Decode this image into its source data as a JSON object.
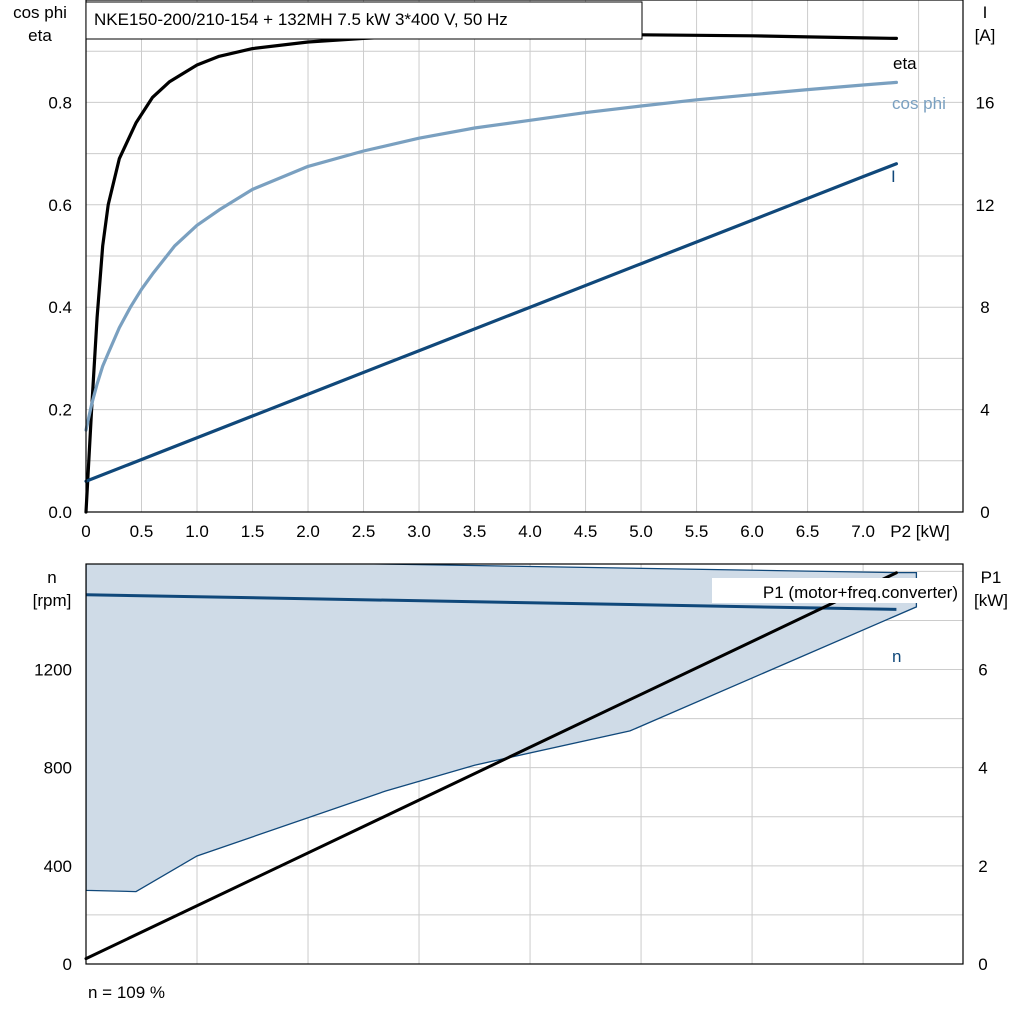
{
  "title": "NKE150-200/210-154 + 132MH   7.5 kW   3*400 V, 50 Hz",
  "footer_note": "n = 109 %",
  "colors": {
    "eta": "#000000",
    "cos_phi": "#7aa0c0",
    "current": "#10487a",
    "speed": "#10487a",
    "speed_band_fill": "#cfdbe7",
    "p1": "#000000",
    "grid": "#cccccc"
  },
  "chart_data": [
    {
      "type": "line",
      "x_axis": {
        "label": "P2 [kW]",
        "range": [
          0,
          7.9
        ],
        "ticks": [
          0,
          0.5,
          1.0,
          1.5,
          2.0,
          2.5,
          3.0,
          3.5,
          4.0,
          4.5,
          5.0,
          5.5,
          6.0,
          6.5,
          7.0
        ],
        "tick_labels": [
          "0",
          "0.5",
          "1.0",
          "1.5",
          "2.0",
          "2.5",
          "3.0",
          "3.5",
          "4.0",
          "4.5",
          "5.0",
          "5.5",
          "6.0",
          "6.5",
          "7.0"
        ]
      },
      "y_left": {
        "label_line1": "cos phi",
        "label_line2": "eta",
        "range": [
          0,
          1.0
        ],
        "ticks": [
          0,
          0.2,
          0.4,
          0.6,
          0.8
        ],
        "tick_labels": [
          "0.0",
          "0.2",
          "0.4",
          "0.6",
          "0.8"
        ]
      },
      "y_right": {
        "label_line1": "I",
        "label_line2": "[A]",
        "range": [
          0,
          20
        ],
        "ticks": [
          0,
          4,
          8,
          12,
          16
        ],
        "tick_labels": [
          "0",
          "4",
          "8",
          "12",
          "16"
        ]
      },
      "grid": true,
      "series": [
        {
          "name": "eta",
          "axis": "left",
          "color_key": "eta",
          "x": [
            0.0,
            0.05,
            0.1,
            0.15,
            0.2,
            0.3,
            0.45,
            0.6,
            0.75,
            0.9,
            1.0,
            1.2,
            1.5,
            2.0,
            2.5,
            3.0,
            3.5,
            4.0,
            4.5,
            5.0,
            5.5,
            6.0,
            6.5,
            7.0,
            7.3
          ],
          "y": [
            0.0,
            0.2,
            0.38,
            0.52,
            0.6,
            0.69,
            0.76,
            0.81,
            0.84,
            0.86,
            0.873,
            0.89,
            0.905,
            0.918,
            0.925,
            0.93,
            0.932,
            0.933,
            0.933,
            0.932,
            0.931,
            0.93,
            0.928,
            0.926,
            0.925
          ]
        },
        {
          "name": "cos phi",
          "axis": "left",
          "color_key": "cos_phi",
          "x": [
            0.0,
            0.05,
            0.1,
            0.15,
            0.2,
            0.3,
            0.4,
            0.5,
            0.6,
            0.8,
            1.0,
            1.2,
            1.5,
            2.0,
            2.5,
            3.0,
            3.5,
            4.0,
            4.5,
            5.0,
            5.5,
            6.0,
            6.5,
            7.0,
            7.3
          ],
          "y": [
            0.16,
            0.21,
            0.25,
            0.285,
            0.31,
            0.36,
            0.4,
            0.435,
            0.465,
            0.52,
            0.56,
            0.59,
            0.63,
            0.675,
            0.705,
            0.73,
            0.75,
            0.765,
            0.78,
            0.793,
            0.805,
            0.815,
            0.825,
            0.834,
            0.839
          ]
        },
        {
          "name": "I",
          "axis": "right",
          "color_key": "current",
          "x": [
            0.0,
            1.0,
            2.0,
            3.0,
            4.0,
            5.0,
            6.0,
            7.0,
            7.3
          ],
          "y": [
            1.2,
            2.9,
            4.6,
            6.3,
            8.0,
            9.7,
            11.4,
            13.1,
            13.6
          ]
        }
      ]
    },
    {
      "type": "area",
      "x_range": [
        0,
        7.9
      ],
      "y_left": {
        "label_line1": "n",
        "label_line2": "[rpm]",
        "range": [
          0,
          1630
        ],
        "ticks": [
          0,
          400,
          800,
          1200
        ],
        "tick_labels": [
          "0",
          "400",
          "800",
          "1200"
        ]
      },
      "y_right": {
        "label_line1": "P1",
        "label_line2": "[kW]",
        "range": [
          0,
          8.15
        ],
        "ticks": [
          0,
          2,
          4,
          6
        ],
        "tick_labels": [
          "0",
          "2",
          "4",
          "6"
        ]
      },
      "grid": true,
      "speed_band": {
        "color_key": "speed_band_fill",
        "upper": {
          "x": [
            0.0,
            7.3,
            7.48,
            7.48
          ],
          "y": [
            1650,
            1595,
            1595,
            1455
          ]
        },
        "lower": {
          "x": [
            7.48,
            4.9,
            3.5,
            2.7,
            1.0,
            0.45,
            0.0
          ],
          "y": [
            1455,
            950,
            810,
            705,
            440,
            295,
            300
          ]
        }
      },
      "series": [
        {
          "name": "n",
          "axis": "left",
          "color_key": "speed",
          "x": [
            0.0,
            7.3
          ],
          "y": [
            1505,
            1445
          ]
        },
        {
          "name": "P1 (motor+freq.converter)",
          "axis": "right",
          "color_key": "p1",
          "x": [
            0.0,
            7.3
          ],
          "y": [
            0.11,
            7.97
          ]
        }
      ]
    }
  ]
}
